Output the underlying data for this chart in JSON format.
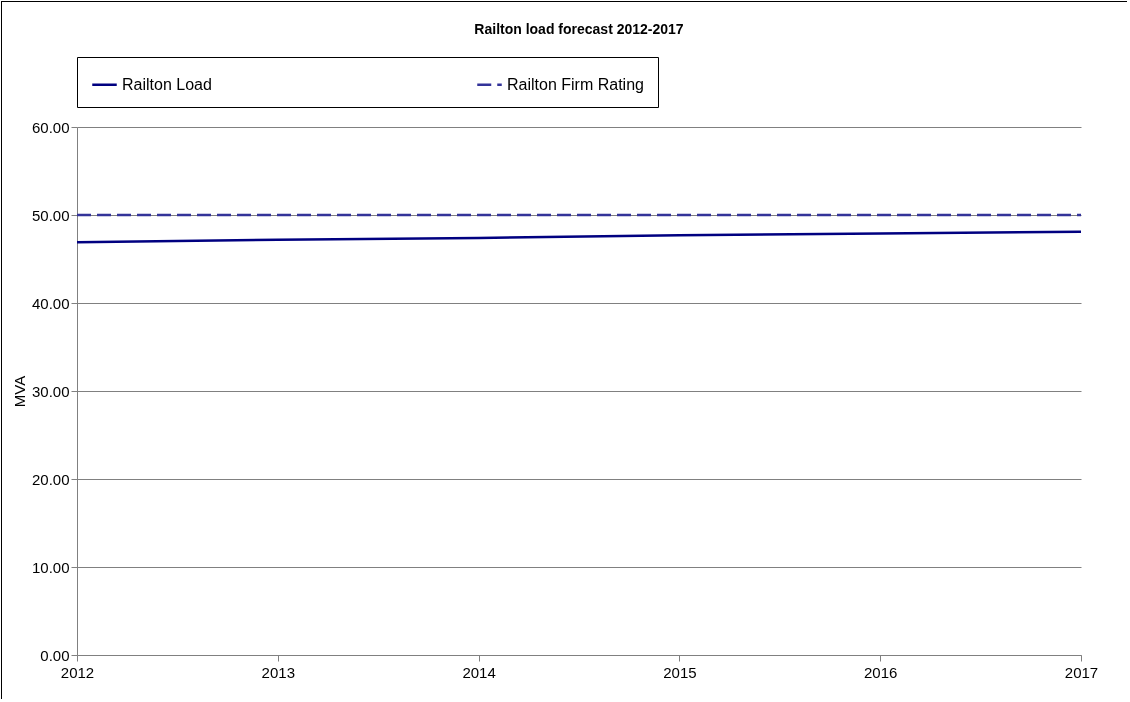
{
  "chart_data": {
    "type": "line",
    "title": "Railton load forecast 2012-2017",
    "ylabel": "MVA",
    "x": [
      2012,
      2013,
      2014,
      2015,
      2016,
      2017
    ],
    "series": [
      {
        "name": "Railton Load",
        "color": "#000080",
        "line_style": "solid",
        "values": [
          46.9,
          47.2,
          47.4,
          47.7,
          47.9,
          48.1
        ]
      },
      {
        "name": "Railton Firm Rating",
        "color": "#333399",
        "line_style": "dashed",
        "values": [
          50,
          50,
          50,
          50,
          50,
          50
        ]
      }
    ],
    "xlim": [
      2012,
      2017
    ],
    "xticks": [
      2012,
      2013,
      2014,
      2015,
      2016,
      2017
    ],
    "ylim": [
      0,
      60
    ],
    "yticks": [
      {
        "value": 0,
        "label": "0.00"
      },
      {
        "value": 10,
        "label": "10.00"
      },
      {
        "value": 20,
        "label": "20.00"
      },
      {
        "value": 30,
        "label": "30.00"
      },
      {
        "value": 40,
        "label": "40.00"
      },
      {
        "value": 50,
        "label": "50.00"
      },
      {
        "value": 60,
        "label": "60.00"
      }
    ],
    "grid": "y",
    "legend": "top",
    "marker": "none"
  }
}
